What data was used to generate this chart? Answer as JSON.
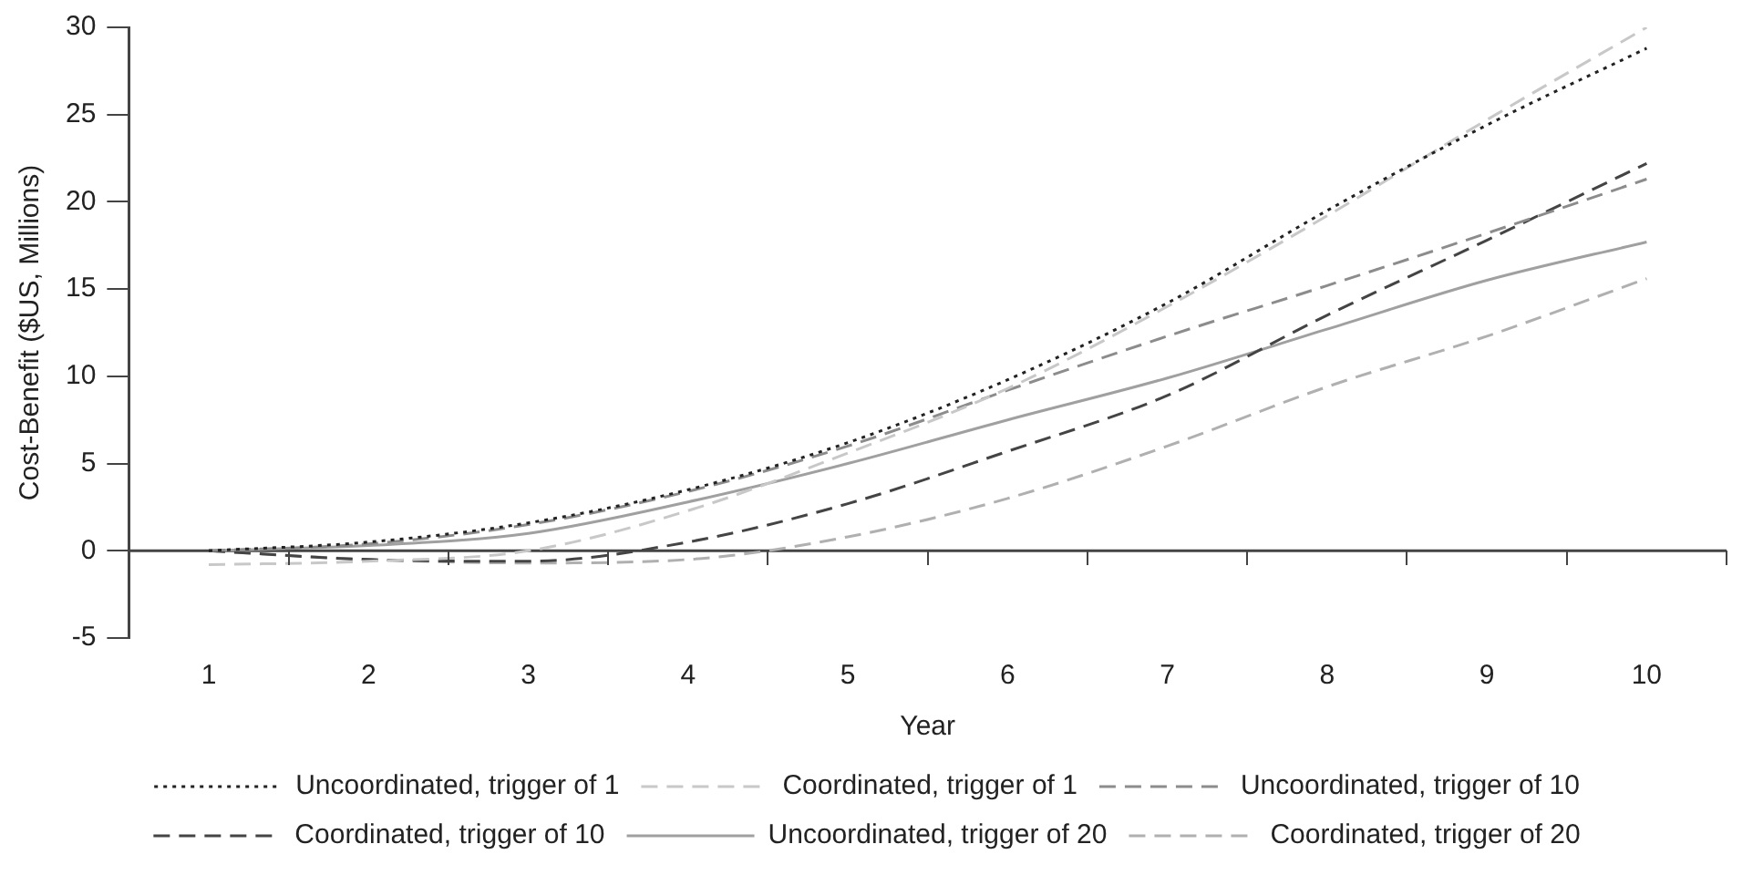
{
  "chart_data": {
    "type": "line",
    "xlabel": "Year",
    "ylabel": "Cost-Benefit ($US, Millions)",
    "categories": [
      "1",
      "2",
      "3",
      "4",
      "5",
      "6",
      "7",
      "8",
      "9",
      "10"
    ],
    "ylim": [
      -5,
      30
    ],
    "ref_lines": [
      {
        "axis": "y",
        "value": 0,
        "color": "#444444"
      }
    ],
    "yticks": [
      -5,
      0,
      5,
      10,
      15,
      20,
      25,
      30
    ],
    "grid": false,
    "legend": "bottom",
    "marker": "none",
    "series": [
      {
        "name": "Uncoordinated, trigger of 1",
        "color": "#222222",
        "line_style": "dotted",
        "values": [
          0,
          0.5,
          1.6,
          3.5,
          6.2,
          9.8,
          14.2,
          19.5,
          24.4,
          28.8
        ]
      },
      {
        "name": "Coordinated, trigger of 1",
        "color": "#c8c8c8",
        "line_style": "dashed",
        "values": [
          -0.8,
          -0.6,
          0,
          2.3,
          5.6,
          9.3,
          14,
          19.2,
          24.7,
          30
        ]
      },
      {
        "name": "Uncoordinated, trigger of 10",
        "color": "#8c8c8c",
        "line_style": "dashed",
        "values": [
          0,
          0.4,
          1.5,
          3.4,
          6,
          9.2,
          12.3,
          15.2,
          18.2,
          21.3
        ]
      },
      {
        "name": "Coordinated, trigger of 10",
        "color": "#444444",
        "line_style": "dashed",
        "values": [
          0,
          -0.5,
          -0.6,
          0.5,
          2.7,
          5.7,
          8.9,
          13.5,
          17.8,
          22.2
        ]
      },
      {
        "name": "Uncoordinated, trigger of 20",
        "color": "#a0a0a0",
        "line_style": "solid",
        "values": [
          0,
          0.3,
          1,
          2.8,
          5,
          7.5,
          9.9,
          12.7,
          15.5,
          17.7
        ]
      },
      {
        "name": "Coordinated, trigger of 20",
        "color": "#b0b0b0",
        "line_style": "dashed",
        "values": [
          0,
          -0.5,
          -0.7,
          -0.5,
          0.8,
          3,
          6,
          9.4,
          12.3,
          15.6
        ]
      }
    ]
  }
}
